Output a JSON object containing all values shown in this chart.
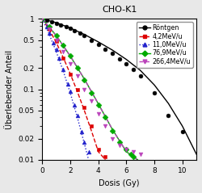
{
  "title": "CHO-K1",
  "xlabel": "Dosis (Gy)",
  "ylabel": "Überlebender Anteil",
  "xlim": [
    0,
    11
  ],
  "ylim": [
    0.01,
    1.5
  ],
  "series": [
    {
      "label": "Röntgen",
      "color": "#000000",
      "linestyle": "-",
      "marker": "o",
      "scatter_x": [
        0.0,
        0.3,
        0.7,
        1.0,
        1.3,
        1.7,
        2.0,
        2.3,
        2.7,
        3.0,
        3.5,
        4.0,
        4.5,
        5.0,
        5.5,
        6.0,
        6.5,
        7.0,
        8.0,
        9.0,
        10.0
      ],
      "scatter_y": [
        1.0,
        0.95,
        0.9,
        0.86,
        0.82,
        0.77,
        0.73,
        0.68,
        0.63,
        0.58,
        0.5,
        0.43,
        0.37,
        0.32,
        0.27,
        0.23,
        0.19,
        0.155,
        0.09,
        0.042,
        0.025
      ],
      "fit_x": [
        0.0,
        1.0,
        2.0,
        3.0,
        4.0,
        5.0,
        6.0,
        7.0,
        8.0,
        9.0,
        10.0,
        11.0
      ],
      "fit_y": [
        1.0,
        0.88,
        0.74,
        0.6,
        0.47,
        0.36,
        0.265,
        0.185,
        0.115,
        0.063,
        0.03,
        0.012
      ]
    },
    {
      "label": "4,2MeV/u",
      "color": "#dd0000",
      "linestyle": "--",
      "marker": "s",
      "scatter_x": [
        0.0,
        0.5,
        1.0,
        1.5,
        2.0,
        2.5,
        3.0,
        3.5,
        4.0,
        4.5
      ],
      "scatter_y": [
        1.0,
        0.72,
        0.48,
        0.28,
        0.165,
        0.1,
        0.055,
        0.03,
        0.014,
        0.011
      ],
      "fit_x": [
        0.0,
        0.5,
        1.0,
        1.5,
        2.0,
        2.5,
        3.0,
        3.5,
        4.0,
        4.5
      ],
      "fit_y": [
        1.0,
        0.7,
        0.46,
        0.28,
        0.165,
        0.093,
        0.05,
        0.026,
        0.013,
        0.01
      ]
    },
    {
      "label": "11,0MeV/u",
      "color": "#2222cc",
      "linestyle": ":",
      "marker": "^",
      "scatter_x": [
        0.0,
        0.3,
        0.5,
        0.8,
        1.0,
        1.2,
        1.5,
        1.8,
        2.0,
        2.3,
        2.5,
        2.8,
        3.0,
        3.3
      ],
      "scatter_y": [
        1.0,
        0.78,
        0.63,
        0.46,
        0.37,
        0.28,
        0.19,
        0.12,
        0.093,
        0.06,
        0.042,
        0.025,
        0.018,
        0.013
      ],
      "fit_x": [
        0.0,
        0.5,
        1.0,
        1.5,
        2.0,
        2.5,
        3.0,
        3.3
      ],
      "fit_y": [
        1.0,
        0.6,
        0.34,
        0.18,
        0.088,
        0.04,
        0.017,
        0.01
      ]
    },
    {
      "label": "76,9MeV/u",
      "color": "#00aa00",
      "linestyle": "-",
      "marker": "D",
      "scatter_x": [
        0.0,
        0.5,
        1.0,
        1.5,
        2.0,
        2.5,
        3.0,
        3.5,
        4.0,
        4.5,
        5.0,
        5.5,
        6.0,
        6.3,
        6.5
      ],
      "scatter_y": [
        1.0,
        0.78,
        0.58,
        0.42,
        0.3,
        0.2,
        0.135,
        0.09,
        0.06,
        0.04,
        0.026,
        0.018,
        0.014,
        0.012,
        0.011
      ],
      "fit_x": [
        0.0,
        1.0,
        2.0,
        3.0,
        4.0,
        5.0,
        6.0,
        6.8
      ],
      "fit_y": [
        1.0,
        0.575,
        0.295,
        0.14,
        0.062,
        0.027,
        0.013,
        0.01
      ]
    },
    {
      "label": "266,4MeV/u",
      "color": "#bb44bb",
      "linestyle": "--",
      "marker": "v",
      "scatter_x": [
        0.0,
        0.5,
        1.0,
        1.5,
        2.0,
        2.5,
        3.0,
        3.5,
        4.0,
        4.5,
        5.0,
        5.5,
        6.0,
        6.5,
        7.0
      ],
      "scatter_y": [
        1.0,
        0.72,
        0.5,
        0.34,
        0.23,
        0.155,
        0.1,
        0.068,
        0.045,
        0.03,
        0.02,
        0.016,
        0.014,
        0.013,
        0.012
      ],
      "fit_x": [
        0.0,
        1.0,
        2.0,
        3.0,
        4.0,
        5.0,
        6.0,
        6.8
      ],
      "fit_y": [
        1.0,
        0.575,
        0.295,
        0.14,
        0.062,
        0.027,
        0.013,
        0.01
      ]
    }
  ],
  "yticks": [
    0.01,
    0.02,
    0.05,
    0.1,
    0.2,
    0.5,
    1.0
  ],
  "ytick_labels": [
    "0.01",
    "0.02",
    "0.05",
    "0.1",
    "0.2",
    "0.5",
    "1"
  ],
  "xticks": [
    0,
    2,
    4,
    6,
    8,
    10
  ],
  "bg_color": "#e8e8e8",
  "title_fontsize": 8,
  "label_fontsize": 7,
  "tick_fontsize": 6.5,
  "legend_fontsize": 5.8,
  "marker_size": 3.5,
  "line_width": 1.0
}
